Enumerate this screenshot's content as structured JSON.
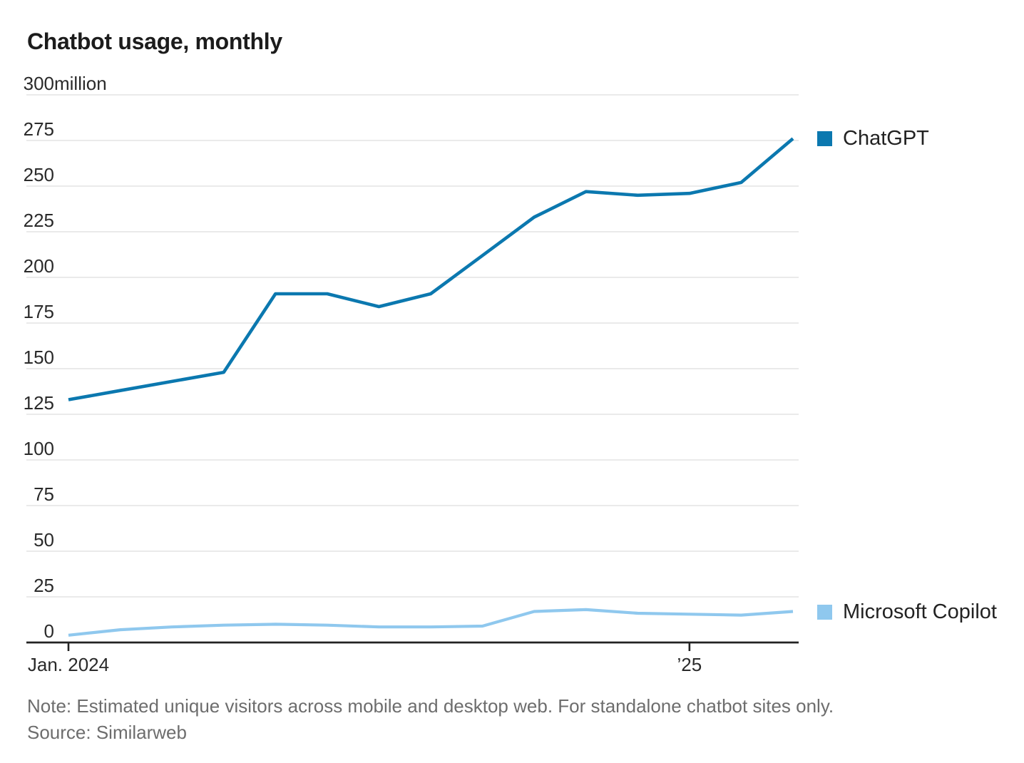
{
  "chart_data": {
    "type": "line",
    "title": "Chatbot usage, monthly",
    "unit": "million monthly unique visitors",
    "x": [
      "Jan. 2024",
      "Feb. 2024",
      "Mar. 2024",
      "Apr. 2024",
      "May 2024",
      "Jun. 2024",
      "Jul. 2024",
      "Aug. 2024",
      "Sep. 2024",
      "Oct. 2024",
      "Nov. 2024",
      "Dec. 2024",
      "Jan. 2025",
      "Feb. 2025",
      "Mar. 2025"
    ],
    "series": [
      {
        "name": "ChatGPT",
        "color": "#0b78af",
        "values": [
          133,
          138,
          143,
          148,
          191,
          191,
          184,
          191,
          212,
          233,
          247,
          245,
          246,
          252,
          276
        ]
      },
      {
        "name": "Microsoft Copilot",
        "color": "#8fc8ee",
        "values": [
          4,
          7,
          8.5,
          9.5,
          10,
          9.5,
          8.5,
          8.5,
          9,
          17,
          18,
          16,
          15.5,
          15,
          17
        ]
      }
    ],
    "ylim": [
      0,
      300
    ],
    "yticks": [
      {
        "value": 300,
        "label": "300",
        "suffix": " million"
      },
      {
        "value": 275,
        "label": "275",
        "suffix": ""
      },
      {
        "value": 250,
        "label": "250",
        "suffix": ""
      },
      {
        "value": 225,
        "label": "225",
        "suffix": ""
      },
      {
        "value": 200,
        "label": "200",
        "suffix": ""
      },
      {
        "value": 175,
        "label": "175",
        "suffix": ""
      },
      {
        "value": 150,
        "label": "150",
        "suffix": ""
      },
      {
        "value": 125,
        "label": "125",
        "suffix": ""
      },
      {
        "value": 100,
        "label": "100",
        "suffix": ""
      },
      {
        "value": 75,
        "label": "75",
        "suffix": ""
      },
      {
        "value": 50,
        "label": "50",
        "suffix": ""
      },
      {
        "value": 25,
        "label": "25",
        "suffix": ""
      },
      {
        "value": 0,
        "label": "0",
        "suffix": ""
      }
    ],
    "xticks": [
      {
        "label": "Jan. 2024",
        "month_index": 0
      },
      {
        "label": "’25",
        "month_index": 12
      }
    ],
    "grid": "horizontal",
    "legend_position": "right"
  },
  "footer": {
    "note": "Note: Estimated unique visitors across mobile and desktop web. For standalone chatbot sites only.",
    "source": "Source: Similarweb"
  }
}
